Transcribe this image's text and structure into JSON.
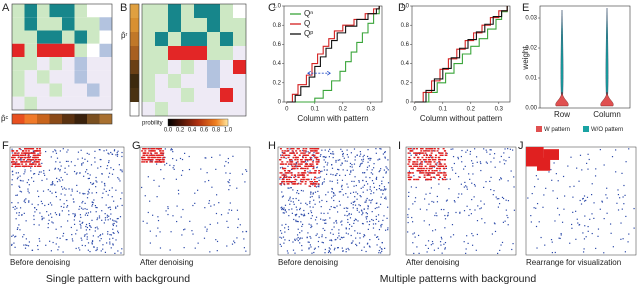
{
  "figure": {
    "panels": [
      "A",
      "B",
      "C",
      "D",
      "E",
      "F",
      "G",
      "H",
      "I",
      "J"
    ],
    "A": {
      "bar_label": "p̂ᶜ"
    },
    "B": {
      "bar_label": "p̂ʳ",
      "colorbar_label": "probility",
      "colorbar_ticks": [
        "0.0",
        "0.2",
        "0.4",
        "0.6",
        "0.8",
        "1.0"
      ]
    },
    "C": {
      "type": "line",
      "xlabel": "Column with pattern",
      "xlim": [
        -0.01,
        0.34
      ],
      "ylim": [
        0,
        1
      ],
      "xticks": [
        0,
        0.1,
        0.2,
        0.3
      ],
      "yticks": [
        0,
        0.2,
        0.4,
        0.6,
        0.8,
        {
          "value": 1,
          "label": "1.0"
        }
      ],
      "series": [
        {
          "name": "Qⁿ",
          "color": "#3aa53a",
          "x": [
            0,
            0.1,
            0.13,
            0.16,
            0.19,
            0.21,
            0.23,
            0.25,
            0.27,
            0.29,
            0.31,
            0.33
          ],
          "values": [
            0,
            0.04,
            0.12,
            0.22,
            0.32,
            0.42,
            0.52,
            0.62,
            0.72,
            0.82,
            0.92,
            1
          ]
        },
        {
          "name": "Q",
          "color": "#d42020",
          "x": [
            0,
            0.02,
            0.04,
            0.07,
            0.09,
            0.11,
            0.13,
            0.15,
            0.17,
            0.2,
            0.24,
            0.28,
            0.31,
            0.33
          ],
          "values": [
            0,
            0.08,
            0.18,
            0.28,
            0.4,
            0.5,
            0.58,
            0.66,
            0.74,
            0.8,
            0.86,
            0.92,
            0.97,
            1
          ]
        },
        {
          "name": "Qᵖ",
          "color": "#111111",
          "x": [
            0,
            0.03,
            0.05,
            0.08,
            0.1,
            0.12,
            0.14,
            0.16,
            0.18,
            0.21,
            0.25,
            0.29,
            0.32,
            0.33
          ],
          "values": [
            0,
            0.07,
            0.16,
            0.26,
            0.37,
            0.47,
            0.56,
            0.64,
            0.72,
            0.79,
            0.86,
            0.92,
            0.97,
            1
          ]
        }
      ]
    },
    "D": {
      "type": "line",
      "xlabel": "Column without pattern",
      "xlim": [
        -0.01,
        0.34
      ],
      "ylim": [
        0,
        1
      ],
      "xticks": [
        0,
        0.1,
        0.2,
        0.3
      ],
      "yticks": [
        0,
        0.2,
        0.4,
        0.6,
        0.8,
        {
          "value": 1,
          "label": "1.0"
        }
      ],
      "series": [
        {
          "name": "Qⁿ",
          "color": "#3aa53a",
          "x": [
            0,
            0.05,
            0.08,
            0.11,
            0.14,
            0.17,
            0.2,
            0.23,
            0.26,
            0.29,
            0.31,
            0.33
          ],
          "values": [
            0,
            0.1,
            0.2,
            0.3,
            0.4,
            0.5,
            0.58,
            0.66,
            0.76,
            0.86,
            0.94,
            1
          ]
        },
        {
          "name": "Q",
          "color": "#d42020",
          "x": [
            0,
            0.03,
            0.06,
            0.09,
            0.12,
            0.15,
            0.18,
            0.21,
            0.24,
            0.27,
            0.3,
            0.33
          ],
          "values": [
            0,
            0.1,
            0.22,
            0.34,
            0.45,
            0.55,
            0.64,
            0.72,
            0.8,
            0.88,
            0.95,
            1
          ]
        },
        {
          "name": "Qᵖ",
          "color": "#111111",
          "x": [
            0,
            0.04,
            0.07,
            0.1,
            0.13,
            0.16,
            0.19,
            0.22,
            0.25,
            0.28,
            0.31,
            0.33
          ],
          "values": [
            0,
            0.12,
            0.24,
            0.35,
            0.46,
            0.56,
            0.65,
            0.73,
            0.81,
            0.89,
            0.95,
            1
          ]
        }
      ]
    },
    "E": {
      "ylabel": "weight",
      "categories": [
        "Row",
        "Column"
      ],
      "legend": [
        "W pattern",
        "W/O pattern"
      ],
      "yticks": [
        {
          "value": 0,
          "label": "0.00"
        },
        0.01,
        0.02,
        0.03
      ],
      "ylim": [
        0,
        0.034
      ]
    },
    "captions": {
      "F": "Before denoising",
      "G": "After denoising",
      "H": "Before denoising",
      "I": "After denoising",
      "J": "Rearrange for visualization"
    },
    "group_titles": [
      "Single pattern with background",
      "Multiple patterns with background"
    ]
  }
}
